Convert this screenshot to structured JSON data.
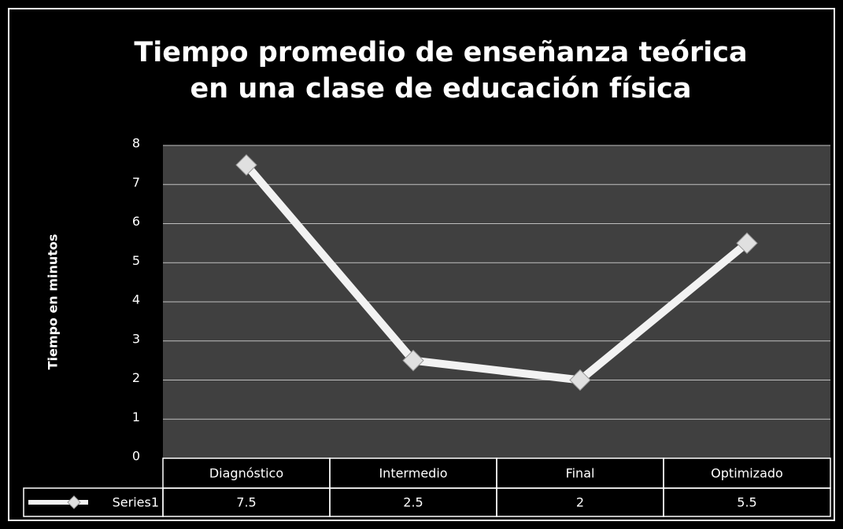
{
  "chart_data": {
    "type": "line",
    "title": "Tiempo promedio de enseñanza teórica\nen una clase de educación física",
    "y_label": "Tiempo  en minutos",
    "categories": [
      "Diagnóstico",
      "Intermedio",
      "Final",
      "Optimizado"
    ],
    "series": [
      {
        "name": "Series1",
        "color": "#f2f2f2",
        "values": [
          7.5,
          2.5,
          2,
          5.5
        ]
      }
    ],
    "ylim": [
      0,
      8
    ],
    "yticks": [
      0,
      1,
      2,
      3,
      4,
      5,
      6,
      7,
      8
    ],
    "grid": true,
    "data_table": true
  }
}
